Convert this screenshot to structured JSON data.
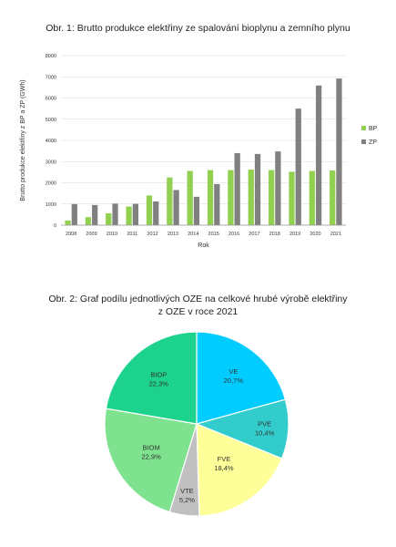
{
  "chart_data": [
    {
      "type": "bar",
      "title": "Obr. 1: Brutto produkce elektřiny ze spalování bioplynu a zemního plynu",
      "xlabel": "Rok",
      "ylabel": "Brutto produkce elektřiny z BP a ZP (GWh)",
      "ylim": [
        0,
        8000
      ],
      "yticks": [
        0,
        1000,
        2000,
        3000,
        4000,
        5000,
        6000,
        7000,
        8000
      ],
      "grid": true,
      "legend": "right",
      "categories": [
        "2008",
        "2009",
        "2010",
        "2011",
        "2012",
        "2013",
        "2014",
        "2015",
        "2016",
        "2017",
        "2018",
        "2019",
        "2020",
        "2021"
      ],
      "series": [
        {
          "name": "BP",
          "color": "#92d050",
          "values": [
            220,
            380,
            560,
            880,
            1400,
            2250,
            2560,
            2600,
            2600,
            2620,
            2600,
            2520,
            2560,
            2580
          ]
        },
        {
          "name": "ZP",
          "color": "#808080",
          "values": [
            1000,
            950,
            1020,
            1010,
            1120,
            1660,
            1340,
            1940,
            3400,
            3360,
            3480,
            5500,
            6590,
            6920
          ]
        }
      ]
    },
    {
      "type": "pie",
      "title_line1": "Obr. 2: Graf podílu jednotlivých OZE na celkové hrubé výrobě elektřiny",
      "title_line2": "z OZE v roce 2021",
      "slices": [
        {
          "name": "VE",
          "label": "20,7%",
          "value": 20.7,
          "color": "#00ccff"
        },
        {
          "name": "PVE",
          "label": "10,4%",
          "value": 10.4,
          "color": "#33cccc"
        },
        {
          "name": "FVE",
          "label": "18,4%",
          "value": 18.4,
          "color": "#ffff99"
        },
        {
          "name": "VTE",
          "label": "5,2%",
          "value": 5.2,
          "color": "#c0c0c0"
        },
        {
          "name": "BIOM",
          "label": "22,9%",
          "value": 22.9,
          "color": "#7fe28f"
        },
        {
          "name": "BIOP",
          "label": "22,3%",
          "value": 22.3,
          "color": "#1dd28c"
        }
      ]
    }
  ]
}
